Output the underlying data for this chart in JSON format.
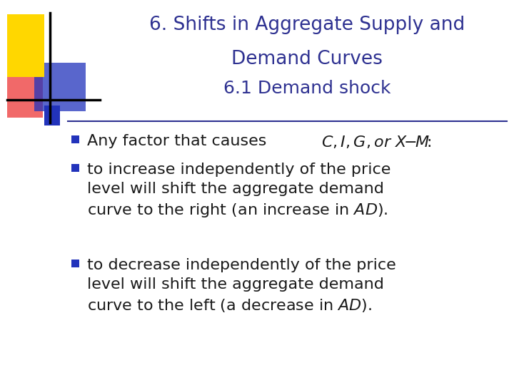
{
  "title_line1": "6. Shifts in Aggregate Supply and",
  "title_line2": "Demand Curves",
  "subtitle": "6.1 Demand shock",
  "title_color": "#2E3191",
  "subtitle_color": "#2E3191",
  "text_color": "#1a1a1a",
  "background_color": "#ffffff",
  "separator_color": "#2E3191",
  "logo_colors": {
    "yellow": "#FFD700",
    "red": "#EE4444",
    "blue": "#2233BB"
  },
  "font_size_title": 19,
  "font_size_subtitle": 18,
  "font_size_bullet": 16,
  "bullet_square_color": "#2233BB",
  "figwidth": 7.2,
  "figheight": 5.4,
  "dpi": 100
}
